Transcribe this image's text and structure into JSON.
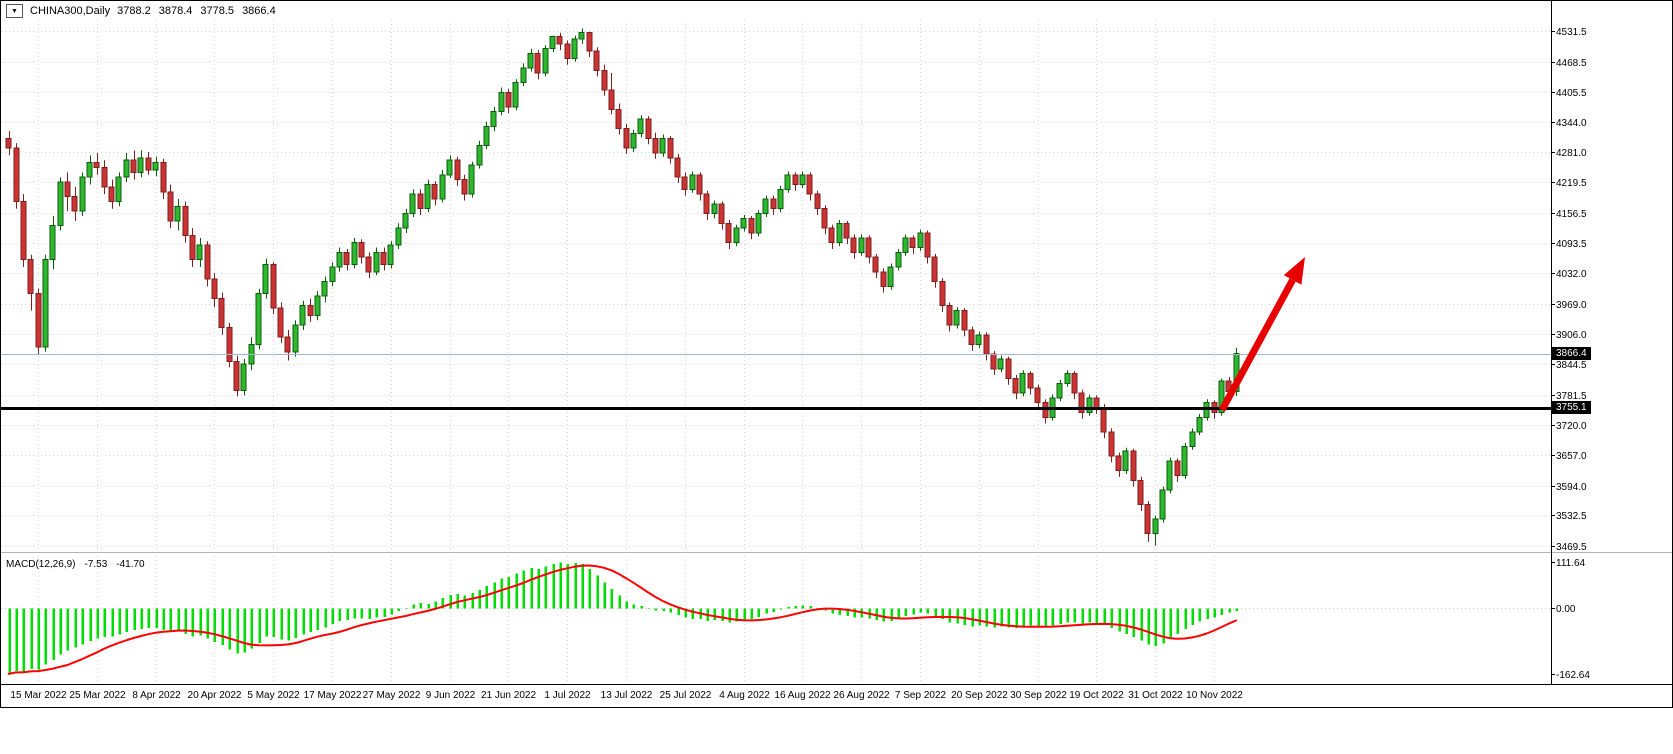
{
  "header": {
    "dropdown_icon": "▼",
    "symbol": "CHINA300,Daily",
    "open": "3788.2",
    "high": "3878.4",
    "low": "3778.5",
    "close": "3866.4"
  },
  "price_scale": {
    "current_price_label": "3866.4",
    "support_label": "3755.1"
  },
  "macd_header": {
    "label": "MACD(12,26,9)",
    "macd_value": "-7.53",
    "signal_value": "-41.70"
  },
  "chart_data": {
    "type": "candlestick",
    "title": "CHINA300,Daily",
    "timeframe": "Daily",
    "grid": true,
    "price_axis": {
      "ticks": [
        4531.5,
        4468.5,
        4405.5,
        4344.0,
        4281.0,
        4219.5,
        4156.5,
        4093.5,
        4032.0,
        3969.0,
        3906.0,
        3844.5,
        3781.5,
        3720.0,
        3657.0,
        3594.0,
        3532.5,
        3469.5
      ]
    },
    "current_price": 3866.4,
    "support_level": 3755.1,
    "x_labels": [
      {
        "bar": 4,
        "label": "15 Mar 2022"
      },
      {
        "bar": 12,
        "label": "25 Mar 2022"
      },
      {
        "bar": 20,
        "label": "8 Apr 2022"
      },
      {
        "bar": 28,
        "label": "20 Apr 2022"
      },
      {
        "bar": 36,
        "label": "5 May 2022"
      },
      {
        "bar": 44,
        "label": "17 May 2022"
      },
      {
        "bar": 52,
        "label": "27 May 2022"
      },
      {
        "bar": 60,
        "label": "9 Jun 2022"
      },
      {
        "bar": 68,
        "label": "21 Jun 2022"
      },
      {
        "bar": 76,
        "label": "1 Jul 2022"
      },
      {
        "bar": 84,
        "label": "13 Jul 2022"
      },
      {
        "bar": 92,
        "label": "25 Jul 2022"
      },
      {
        "bar": 100,
        "label": "4 Aug 2022"
      },
      {
        "bar": 108,
        "label": "16 Aug 2022"
      },
      {
        "bar": 116,
        "label": "26 Aug 2022"
      },
      {
        "bar": 124,
        "label": "7 Sep 2022"
      },
      {
        "bar": 132,
        "label": "20 Sep 2022"
      },
      {
        "bar": 140,
        "label": "30 Sep 2022"
      },
      {
        "bar": 148,
        "label": "19 Oct 2022"
      },
      {
        "bar": 156,
        "label": "31 Oct 2022"
      },
      {
        "bar": 164,
        "label": "10 Nov 2022"
      }
    ],
    "candles": [
      [
        4310,
        4325,
        4275,
        4290
      ],
      [
        4290,
        4300,
        4165,
        4180
      ],
      [
        4180,
        4195,
        4045,
        4060
      ],
      [
        4060,
        4070,
        3955,
        3990
      ],
      [
        3990,
        4000,
        3865,
        3880
      ],
      [
        3880,
        4070,
        3870,
        4060
      ],
      [
        4060,
        4150,
        4040,
        4130
      ],
      [
        4130,
        4230,
        4120,
        4220
      ],
      [
        4220,
        4240,
        4160,
        4190
      ],
      [
        4190,
        4210,
        4140,
        4160
      ],
      [
        4160,
        4240,
        4150,
        4230
      ],
      [
        4230,
        4275,
        4215,
        4260
      ],
      [
        4260,
        4280,
        4235,
        4250
      ],
      [
        4250,
        4265,
        4195,
        4210
      ],
      [
        4210,
        4225,
        4165,
        4180
      ],
      [
        4180,
        4240,
        4170,
        4230
      ],
      [
        4230,
        4280,
        4220,
        4265
      ],
      [
        4265,
        4285,
        4225,
        4240
      ],
      [
        4240,
        4285,
        4230,
        4270
      ],
      [
        4270,
        4282,
        4235,
        4245
      ],
      [
        4245,
        4272,
        4232,
        4260
      ],
      [
        4260,
        4268,
        4185,
        4200
      ],
      [
        4200,
        4215,
        4125,
        4140
      ],
      [
        4140,
        4185,
        4120,
        4170
      ],
      [
        4170,
        4180,
        4095,
        4110
      ],
      [
        4110,
        4125,
        4045,
        4060
      ],
      [
        4060,
        4105,
        4045,
        4090
      ],
      [
        4090,
        4098,
        4005,
        4020
      ],
      [
        4020,
        4032,
        3962,
        3980
      ],
      [
        3980,
        3992,
        3905,
        3920
      ],
      [
        3920,
        3930,
        3838,
        3850
      ],
      [
        3850,
        3862,
        3778,
        3790
      ],
      [
        3790,
        3855,
        3780,
        3845
      ],
      [
        3845,
        3900,
        3832,
        3885
      ],
      [
        3885,
        4000,
        3875,
        3990
      ],
      [
        3990,
        4062,
        3980,
        4050
      ],
      [
        4050,
        4055,
        3948,
        3960
      ],
      [
        3960,
        3972,
        3888,
        3900
      ],
      [
        3900,
        3915,
        3852,
        3870
      ],
      [
        3870,
        3935,
        3860,
        3925
      ],
      [
        3925,
        3975,
        3915,
        3965
      ],
      [
        3965,
        3980,
        3932,
        3945
      ],
      [
        3945,
        3995,
        3935,
        3985
      ],
      [
        3985,
        4025,
        3972,
        4015
      ],
      [
        4015,
        4055,
        4005,
        4045
      ],
      [
        4045,
        4085,
        4035,
        4075
      ],
      [
        4075,
        4082,
        4038,
        4050
      ],
      [
        4050,
        4105,
        4042,
        4095
      ],
      [
        4095,
        4102,
        4052,
        4065
      ],
      [
        4065,
        4075,
        4022,
        4035
      ],
      [
        4035,
        4085,
        4028,
        4075
      ],
      [
        4075,
        4085,
        4038,
        4050
      ],
      [
        4050,
        4098,
        4042,
        4090
      ],
      [
        4090,
        4135,
        4082,
        4125
      ],
      [
        4125,
        4165,
        4115,
        4155
      ],
      [
        4155,
        4205,
        4148,
        4195
      ],
      [
        4195,
        4205,
        4152,
        4165
      ],
      [
        4165,
        4225,
        4158,
        4215
      ],
      [
        4215,
        4222,
        4172,
        4185
      ],
      [
        4185,
        4245,
        4178,
        4235
      ],
      [
        4235,
        4275,
        4228,
        4265
      ],
      [
        4265,
        4272,
        4212,
        4225
      ],
      [
        4225,
        4235,
        4182,
        4195
      ],
      [
        4195,
        4262,
        4188,
        4255
      ],
      [
        4255,
        4305,
        4248,
        4295
      ],
      [
        4295,
        4345,
        4288,
        4335
      ],
      [
        4335,
        4375,
        4325,
        4365
      ],
      [
        4365,
        4415,
        4358,
        4405
      ],
      [
        4405,
        4412,
        4362,
        4375
      ],
      [
        4375,
        4432,
        4368,
        4425
      ],
      [
        4425,
        4465,
        4418,
        4455
      ],
      [
        4455,
        4495,
        4448,
        4485
      ],
      [
        4485,
        4492,
        4432,
        4445
      ],
      [
        4445,
        4502,
        4438,
        4495
      ],
      [
        4495,
        4522,
        4488,
        4520
      ],
      [
        4520,
        4528,
        4492,
        4505
      ],
      [
        4505,
        4512,
        4462,
        4475
      ],
      [
        4475,
        4522,
        4468,
        4515
      ],
      [
        4515,
        4537,
        4505,
        4528
      ],
      [
        4528,
        4530,
        4478,
        4490
      ],
      [
        4490,
        4498,
        4438,
        4450
      ],
      [
        4450,
        4462,
        4398,
        4410
      ],
      [
        4410,
        4445,
        4360,
        4370
      ],
      [
        4370,
        4382,
        4318,
        4330
      ],
      [
        4330,
        4340,
        4278,
        4290
      ],
      [
        4290,
        4328,
        4282,
        4320
      ],
      [
        4320,
        4358,
        4312,
        4350
      ],
      [
        4350,
        4356,
        4298,
        4310
      ],
      [
        4310,
        4322,
        4268,
        4280
      ],
      [
        4280,
        4318,
        4272,
        4310
      ],
      [
        4310,
        4315,
        4258,
        4270
      ],
      [
        4270,
        4278,
        4218,
        4230
      ],
      [
        4230,
        4240,
        4192,
        4205
      ],
      [
        4205,
        4242,
        4198,
        4235
      ],
      [
        4235,
        4240,
        4182,
        4195
      ],
      [
        4195,
        4202,
        4142,
        4155
      ],
      [
        4155,
        4182,
        4145,
        4175
      ],
      [
        4175,
        4180,
        4122,
        4135
      ],
      [
        4135,
        4142,
        4082,
        4095
      ],
      [
        4095,
        4132,
        4088,
        4125
      ],
      [
        4125,
        4152,
        4118,
        4145
      ],
      [
        4145,
        4150,
        4102,
        4115
      ],
      [
        4115,
        4162,
        4108,
        4155
      ],
      [
        4155,
        4192,
        4148,
        4185
      ],
      [
        4185,
        4192,
        4152,
        4165
      ],
      [
        4165,
        4212,
        4158,
        4205
      ],
      [
        4205,
        4242,
        4198,
        4235
      ],
      [
        4235,
        4240,
        4202,
        4215
      ],
      [
        4215,
        4242,
        4208,
        4235
      ],
      [
        4235,
        4240,
        4182,
        4195
      ],
      [
        4195,
        4202,
        4152,
        4165
      ],
      [
        4165,
        4172,
        4112,
        4125
      ],
      [
        4125,
        4132,
        4082,
        4095
      ],
      [
        4095,
        4142,
        4088,
        4135
      ],
      [
        4135,
        4140,
        4092,
        4105
      ],
      [
        4105,
        4112,
        4062,
        4075
      ],
      [
        4075,
        4112,
        4068,
        4105
      ],
      [
        4105,
        4110,
        4052,
        4065
      ],
      [
        4065,
        4072,
        4022,
        4035
      ],
      [
        4035,
        4042,
        3992,
        4005
      ],
      [
        4005,
        4052,
        3998,
        4045
      ],
      [
        4045,
        4082,
        4038,
        4075
      ],
      [
        4075,
        4112,
        4068,
        4105
      ],
      [
        4105,
        4110,
        4072,
        4085
      ],
      [
        4085,
        4122,
        4078,
        4115
      ],
      [
        4115,
        4120,
        4052,
        4065
      ],
      [
        4065,
        4072,
        4002,
        4015
      ],
      [
        4015,
        4022,
        3952,
        3965
      ],
      [
        3965,
        3972,
        3912,
        3925
      ],
      [
        3925,
        3962,
        3918,
        3955
      ],
      [
        3955,
        3960,
        3902,
        3915
      ],
      [
        3915,
        3922,
        3872,
        3885
      ],
      [
        3885,
        3912,
        3878,
        3905
      ],
      [
        3905,
        3910,
        3852,
        3865
      ],
      [
        3865,
        3872,
        3822,
        3835
      ],
      [
        3835,
        3862,
        3828,
        3855
      ],
      [
        3855,
        3860,
        3802,
        3815
      ],
      [
        3815,
        3822,
        3772,
        3785
      ],
      [
        3785,
        3832,
        3778,
        3825
      ],
      [
        3825,
        3830,
        3782,
        3795
      ],
      [
        3795,
        3802,
        3752,
        3765
      ],
      [
        3765,
        3772,
        3722,
        3735
      ],
      [
        3735,
        3782,
        3728,
        3775
      ],
      [
        3775,
        3812,
        3768,
        3805
      ],
      [
        3805,
        3832,
        3798,
        3825
      ],
      [
        3825,
        3830,
        3772,
        3785
      ],
      [
        3785,
        3792,
        3732,
        3745
      ],
      [
        3745,
        3782,
        3738,
        3775
      ],
      [
        3775,
        3780,
        3742,
        3755
      ],
      [
        3755,
        3762,
        3692,
        3705
      ],
      [
        3705,
        3712,
        3642,
        3655
      ],
      [
        3655,
        3662,
        3612,
        3625
      ],
      [
        3625,
        3672,
        3618,
        3665
      ],
      [
        3665,
        3670,
        3592,
        3605
      ],
      [
        3605,
        3612,
        3542,
        3555
      ],
      [
        3555,
        3562,
        3478,
        3495
      ],
      [
        3495,
        3532,
        3470,
        3525
      ],
      [
        3525,
        3592,
        3518,
        3585
      ],
      [
        3585,
        3652,
        3578,
        3645
      ],
      [
        3645,
        3650,
        3602,
        3615
      ],
      [
        3615,
        3682,
        3608,
        3675
      ],
      [
        3675,
        3712,
        3668,
        3705
      ],
      [
        3705,
        3742,
        3698,
        3735
      ],
      [
        3735,
        3772,
        3728,
        3765
      ],
      [
        3765,
        3770,
        3732,
        3745
      ],
      [
        3745,
        3815,
        3738,
        3810
      ],
      [
        3810,
        3818,
        3768,
        3788
      ],
      [
        3788.2,
        3878.4,
        3778.5,
        3866.4
      ]
    ],
    "macd": {
      "label": "MACD(12,26,9)",
      "ticks": [
        111.64,
        0,
        -162.64
      ],
      "ylim": [
        -180,
        125
      ],
      "signal_period": 9,
      "last_macd": -7.53,
      "last_signal": -41.7,
      "hist": [
        -162.64,
        -155,
        -158,
        -150,
        -152,
        -140,
        -128,
        -115,
        -105,
        -98,
        -90,
        -82,
        -76,
        -72,
        -70,
        -66,
        -60,
        -55,
        -52,
        -50,
        -50,
        -54,
        -60,
        -58,
        -64,
        -70,
        -68,
        -76,
        -84,
        -92,
        -102,
        -112,
        -110,
        -100,
        -86,
        -70,
        -72,
        -78,
        -80,
        -74,
        -66,
        -60,
        -54,
        -48,
        -40,
        -32,
        -30,
        -26,
        -26,
        -28,
        -24,
        -22,
        -16,
        -8,
        0,
        8,
        12,
        10,
        16,
        24,
        32,
        34,
        30,
        36,
        44,
        54,
        62,
        72,
        76,
        84,
        92,
        98,
        96,
        102,
        108,
        111.64,
        108,
        110,
        108,
        96,
        80,
        62,
        46,
        30,
        16,
        8,
        4,
        0,
        -6,
        -8,
        -12,
        -18,
        -24,
        -28,
        -28,
        -32,
        -30,
        -32,
        -36,
        -34,
        -30,
        -28,
        -22,
        -14,
        -10,
        -4,
        2,
        4,
        6,
        4,
        0,
        -6,
        -14,
        -18,
        -20,
        -24,
        -24,
        -26,
        -30,
        -34,
        -32,
        -26,
        -20,
        -16,
        -12,
        -14,
        -20,
        -28,
        -36,
        -38,
        -42,
        -46,
        -44,
        -46,
        -48,
        -46,
        -48,
        -50,
        -46,
        -44,
        -44,
        -46,
        -44,
        -40,
        -36,
        -36,
        -38,
        -36,
        -38,
        -42,
        -50,
        -58,
        -64,
        -72,
        -80,
        -90,
        -94,
        -88,
        -76,
        -64,
        -52,
        -42,
        -34,
        -28,
        -24,
        -18,
        -12,
        -7.53
      ]
    },
    "colors": {
      "bull": "#2DB82D",
      "bull_border": "#0B5D0B",
      "bear": "#CC3333",
      "bear_border": "#7E1F1F",
      "hist": "#00DD00",
      "signal": "#FF0000",
      "grid": "#D4D4D4",
      "support_line": "#000000",
      "current_price_line": "#9FB6CE",
      "arrow": "#E60000"
    }
  }
}
